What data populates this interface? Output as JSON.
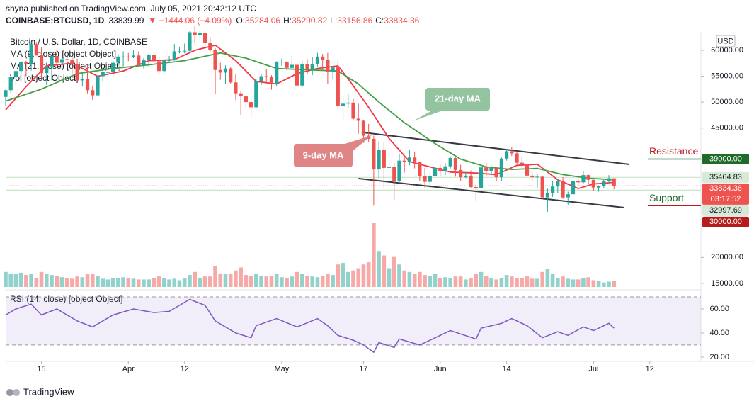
{
  "header": {
    "publisher": "shyna published on TradingView.com, July 05, 2021 20:42:12 UTC",
    "symbol": "COINBASE:BTCUSD, 1D",
    "last": "33839.99",
    "change": "▼ −1444.06 (−4.09%)",
    "ohlc": [
      {
        "key": "O:",
        "value": "35284.06"
      },
      {
        "key": "H:",
        "value": "35290.82"
      },
      {
        "key": "L:",
        "value": "33156.86"
      },
      {
        "key": "C:",
        "value": "33834.36"
      }
    ]
  },
  "footer": "TradingView",
  "chart_data": {
    "type": "candlestick",
    "legend": [
      "Bitcoin / U.S. Dollar, 1D, COINBASE",
      "MA (9, close) [object Object]",
      "MA (21, close) [object Object]",
      "Vol [object Object]"
    ],
    "currency": "USD",
    "x": [
      "03-08",
      "03-09",
      "03-10",
      "03-11",
      "03-12",
      "03-13",
      "03-14",
      "03-15",
      "03-16",
      "03-17",
      "03-18",
      "03-19",
      "03-20",
      "03-21",
      "03-22",
      "03-23",
      "03-24",
      "03-25",
      "03-26",
      "03-27",
      "03-28",
      "03-29",
      "03-30",
      "03-31",
      "04-01",
      "04-02",
      "04-03",
      "04-04",
      "04-05",
      "04-06",
      "04-07",
      "04-08",
      "04-09",
      "04-10",
      "04-11",
      "04-12",
      "04-13",
      "04-14",
      "04-15",
      "04-16",
      "04-17",
      "04-18",
      "04-19",
      "04-20",
      "04-21",
      "04-22",
      "04-23",
      "04-24",
      "04-25",
      "04-26",
      "04-27",
      "04-28",
      "04-29",
      "04-30",
      "05-01",
      "05-02",
      "05-03",
      "05-04",
      "05-05",
      "05-06",
      "05-07",
      "05-08",
      "05-09",
      "05-10",
      "05-11",
      "05-12",
      "05-13",
      "05-14",
      "05-15",
      "05-16",
      "05-17",
      "05-18",
      "05-19",
      "05-20",
      "05-21",
      "05-22",
      "05-23",
      "05-24",
      "05-25",
      "05-26",
      "05-27",
      "05-28",
      "05-29",
      "05-30",
      "05-31",
      "06-01",
      "06-02",
      "06-03",
      "06-04",
      "06-05",
      "06-06",
      "06-07",
      "06-08",
      "06-09",
      "06-10",
      "06-11",
      "06-12",
      "06-13",
      "06-14",
      "06-15",
      "06-16",
      "06-17",
      "06-18",
      "06-19",
      "06-20",
      "06-21",
      "06-22",
      "06-23",
      "06-24",
      "06-25",
      "06-26",
      "06-27",
      "06-28",
      "06-29",
      "06-30",
      "07-01",
      "07-02",
      "07-03",
      "07-04",
      "07-05"
    ],
    "open": [
      51000,
      52300,
      54800,
      56000,
      57800,
      57300,
      61200,
      59000,
      55600,
      56900,
      58900,
      57600,
      58300,
      58100,
      57400,
      54200,
      54400,
      52300,
      51300,
      55000,
      55800,
      55800,
      57600,
      58800,
      58800,
      58700,
      59000,
      57100,
      58200,
      59100,
      57900,
      56000,
      58000,
      58100,
      59800,
      59800,
      59900,
      63500,
      62900,
      63300,
      61500,
      60000,
      56200,
      55700,
      56500,
      53800,
      51700,
      51100,
      50000,
      49000,
      54000,
      55000,
      54900,
      53500,
      57700,
      57800,
      56600,
      57200,
      53200,
      57400,
      56400,
      57300,
      58800,
      58200,
      55800,
      56700,
      49200,
      49700,
      49900,
      46800,
      46400,
      43500,
      42900,
      37000,
      40800,
      37300,
      37500,
      34700,
      38700,
      38400,
      39300,
      38400,
      35700,
      34600,
      35700,
      37300,
      36700,
      37600,
      39200,
      36900,
      35500,
      35800,
      33600,
      33400,
      37400,
      36700,
      37300,
      35500,
      39100,
      40500,
      40100,
      38300,
      38100,
      35800,
      35500,
      35600,
      31600,
      32500,
      33700,
      34700,
      31600,
      32200,
      34700,
      34500,
      35900,
      35000,
      33500,
      33800,
      34700,
      35284.06
    ],
    "high": [
      52400,
      54900,
      57300,
      58100,
      58000,
      61700,
      61600,
      60600,
      56900,
      58900,
      60000,
      59400,
      59900,
      58600,
      58400,
      55800,
      57200,
      53200,
      55100,
      56600,
      56600,
      58400,
      59300,
      59800,
      59500,
      60000,
      59800,
      58500,
      59300,
      59500,
      58700,
      58200,
      58900,
      61200,
      60700,
      61300,
      63700,
      64800,
      63800,
      63500,
      62500,
      60400,
      57600,
      57100,
      56800,
      55500,
      52100,
      51100,
      50600,
      54400,
      55400,
      56400,
      55200,
      57900,
      58400,
      57900,
      58900,
      57200,
      57900,
      58300,
      58700,
      59500,
      59300,
      59500,
      56900,
      58000,
      51300,
      51500,
      50600,
      49700,
      46600,
      45800,
      43500,
      42400,
      42200,
      38800,
      38200,
      39900,
      39800,
      40800,
      40400,
      38500,
      37300,
      36400,
      37500,
      37900,
      38200,
      39500,
      39300,
      37900,
      36500,
      36800,
      34100,
      37500,
      38300,
      37700,
      37400,
      39300,
      41000,
      41300,
      40500,
      39500,
      38200,
      36400,
      36100,
      35700,
      33300,
      34800,
      35200,
      35500,
      32700,
      34700,
      35300,
      36600,
      36000,
      35000,
      33900,
      35000,
      35900,
      35290.82
    ],
    "low": [
      49300,
      51800,
      53000,
      54200,
      55000,
      56100,
      59000,
      54600,
      53300,
      54200,
      57000,
      56300,
      57800,
      55500,
      53700,
      53000,
      51700,
      50400,
      51300,
      53900,
      54700,
      54900,
      57000,
      56900,
      57900,
      58500,
      57000,
      56500,
      56800,
      57800,
      55500,
      55900,
      57700,
      58000,
      59400,
      59400,
      59800,
      61500,
      62100,
      60000,
      59700,
      51600,
      54300,
      53500,
      53600,
      50400,
      47500,
      48800,
      47000,
      48800,
      53300,
      53900,
      52400,
      53100,
      57000,
      56100,
      56500,
      53100,
      52900,
      55300,
      55200,
      56900,
      56200,
      53500,
      54400,
      48600,
      46200,
      48800,
      46600,
      43900,
      42100,
      42300,
      30000,
      35300,
      33500,
      35300,
      31100,
      34400,
      36400,
      37800,
      37200,
      34700,
      33500,
      33400,
      34200,
      35700,
      35900,
      37200,
      35600,
      34800,
      35300,
      33400,
      31000,
      32400,
      35800,
      35900,
      34700,
      34800,
      38700,
      39600,
      38100,
      37400,
      35100,
      34800,
      33400,
      31300,
      28800,
      31700,
      32400,
      31300,
      30200,
      32000,
      33900,
      34300,
      34100,
      32800,
      32700,
      33400,
      34400,
      33156.86
    ],
    "close": [
      52300,
      54800,
      56000,
      57800,
      57300,
      61200,
      59000,
      55600,
      56900,
      58900,
      57600,
      58300,
      58100,
      57400,
      54200,
      54400,
      52300,
      51300,
      55000,
      55800,
      55800,
      57600,
      58800,
      58800,
      58700,
      59000,
      57100,
      58200,
      59100,
      57900,
      56000,
      58000,
      58100,
      59800,
      59800,
      59900,
      63500,
      62900,
      63300,
      61500,
      60000,
      56200,
      55700,
      56500,
      53800,
      51700,
      51100,
      50000,
      49000,
      54000,
      55000,
      54900,
      53500,
      57700,
      57800,
      56600,
      57200,
      53200,
      57400,
      56400,
      57300,
      58800,
      58200,
      55800,
      56700,
      49200,
      49700,
      49900,
      46800,
      46400,
      43500,
      42900,
      37000,
      40800,
      37300,
      37500,
      34700,
      38700,
      38400,
      39300,
      38400,
      35700,
      34600,
      35700,
      37300,
      36700,
      37600,
      39200,
      36900,
      35500,
      35800,
      33600,
      33400,
      37400,
      36700,
      37300,
      35500,
      39100,
      40500,
      40100,
      38300,
      38100,
      35800,
      35500,
      35600,
      31600,
      32500,
      33700,
      34700,
      31600,
      32200,
      34700,
      34500,
      35900,
      35000,
      33500,
      33800,
      34700,
      35284.06,
      33834.36
    ],
    "volume": [
      20,
      18,
      17,
      19,
      16,
      18,
      12,
      20,
      17,
      16,
      15,
      13,
      12,
      11,
      14,
      13,
      18,
      17,
      15,
      11,
      10,
      12,
      12,
      13,
      12,
      11,
      10,
      10,
      10,
      12,
      14,
      12,
      10,
      11,
      9,
      12,
      16,
      20,
      12,
      14,
      14,
      28,
      18,
      17,
      17,
      22,
      26,
      16,
      15,
      18,
      15,
      14,
      15,
      17,
      13,
      12,
      14,
      20,
      17,
      15,
      14,
      13,
      15,
      18,
      16,
      30,
      32,
      20,
      22,
      25,
      30,
      33,
      85,
      48,
      42,
      25,
      40,
      30,
      22,
      20,
      18,
      20,
      16,
      15,
      17,
      12,
      13,
      12,
      14,
      14,
      10,
      12,
      17,
      20,
      15,
      12,
      10,
      12,
      16,
      14,
      12,
      12,
      14,
      11,
      11,
      20,
      24,
      17,
      12,
      14,
      11,
      10,
      10,
      12,
      13,
      9,
      8,
      6,
      7,
      8
    ],
    "up_color": "#26a69a",
    "down_color": "#ef5350",
    "ma_series": [
      {
        "color": "#f23645",
        "x": [
          "03-08",
          "03-12",
          "03-16",
          "03-21",
          "03-26",
          "03-31",
          "04-05",
          "04-10",
          "04-14",
          "04-18",
          "04-22",
          "04-26",
          "04-30",
          "05-04",
          "05-08",
          "05-12",
          "05-14",
          "05-18",
          "05-22",
          "05-26",
          "05-30",
          "06-03",
          "06-08",
          "06-12",
          "06-16",
          "06-20",
          "06-24",
          "06-28",
          "07-01",
          "07-05"
        ],
        "values": [
          48500,
          53000,
          57000,
          57500,
          55000,
          56000,
          58000,
          58200,
          60000,
          61000,
          58000,
          54000,
          53500,
          55500,
          56500,
          57000,
          54500,
          49000,
          43000,
          38500,
          37500,
          36500,
          36300,
          36000,
          37800,
          38000,
          35000,
          33300,
          34200,
          34500
        ]
      },
      {
        "color": "#43a047",
        "x": [
          "03-08",
          "03-15",
          "03-22",
          "03-29",
          "04-05",
          "04-12",
          "04-19",
          "04-24",
          "04-30",
          "05-07",
          "05-12",
          "05-16",
          "05-20",
          "05-25",
          "05-31",
          "06-05",
          "06-10",
          "06-15",
          "06-20",
          "06-25",
          "06-30",
          "07-05"
        ],
        "values": [
          50200,
          52500,
          55500,
          56500,
          57200,
          58000,
          59500,
          58500,
          56500,
          56200,
          56000,
          53500,
          50000,
          46000,
          42000,
          39000,
          37500,
          37000,
          37200,
          36000,
          35300,
          35000
        ]
      }
    ],
    "xlim": [
      "03-08",
      "07-22"
    ],
    "xticks": [
      {
        "value": "03-15",
        "label": "15"
      },
      {
        "value": "04-01",
        "label": "Apr"
      },
      {
        "value": "04-12",
        "label": "12"
      },
      {
        "value": "05-01",
        "label": "May"
      },
      {
        "value": "05-17",
        "label": "17"
      },
      {
        "value": "06-01",
        "label": "Jun"
      },
      {
        "value": "06-14",
        "label": "14"
      },
      {
        "value": "07-01",
        "label": "Jul"
      },
      {
        "value": "07-12",
        "label": "12"
      }
    ],
    "ylim": [
      14300,
      63560
    ],
    "yticks": [
      {
        "value": 60000,
        "label": "60000.00"
      },
      {
        "value": 55000,
        "label": "55000.00"
      },
      {
        "value": 50000,
        "label": "50000.00"
      },
      {
        "value": 45000,
        "label": "45000.00"
      },
      {
        "value": 20000,
        "label": "20000.00"
      },
      {
        "value": 15000,
        "label": "15000.00"
      }
    ],
    "price_labels": [
      {
        "value": 39000,
        "label": "39000.00",
        "color": "#1e6b2a",
        "text_color": "#ffffff",
        "line": "short"
      },
      {
        "value": 35464.83,
        "label": "35464.83",
        "color": "#d6ead7",
        "text_color": "#131722",
        "line": "full"
      },
      {
        "value": 33834.36,
        "label": "33834.36",
        "sub": "03:17:52",
        "color": "#ef5350",
        "text_color": "#ffffff",
        "line": "dotted"
      },
      {
        "value": 32997.69,
        "label": "32997.69",
        "color": "#d6ead7",
        "text_color": "#131722",
        "line": "full"
      },
      {
        "value": 30000,
        "label": "30000.00",
        "color": "#b71c1c",
        "text_color": "#ffffff",
        "line": "short"
      }
    ],
    "annotations": [
      {
        "text": "Resistance",
        "value": 39000,
        "color": "#b71c1c"
      },
      {
        "text": "Support",
        "value": 30000,
        "color": "#1e6b2a"
      }
    ],
    "trendlines": [
      {
        "x": [
          "05-17",
          "07-08"
        ],
        "values": [
          44130,
          37975
        ]
      },
      {
        "x": [
          "05-16",
          "07-07"
        ],
        "values": [
          35240,
          29630
        ]
      }
    ],
    "callouts": [
      "21-day MA",
      "9-day MA"
    ],
    "rsi": {
      "legend": "RSI (14, close) [object Object]",
      "color": "#7e57c2",
      "x": [
        "03-08",
        "03-10",
        "03-13",
        "03-15",
        "03-18",
        "03-22",
        "03-25",
        "03-29",
        "04-02",
        "04-06",
        "04-09",
        "04-13",
        "04-16",
        "04-18",
        "04-22",
        "04-25",
        "04-26",
        "04-30",
        "05-04",
        "05-08",
        "05-10",
        "05-12",
        "05-15",
        "05-17",
        "05-19",
        "05-20",
        "05-23",
        "05-24",
        "05-28",
        "06-01",
        "06-03",
        "06-08",
        "06-09",
        "06-13",
        "06-15",
        "06-18",
        "06-21",
        "06-24",
        "06-26",
        "06-29",
        "07-01",
        "07-04",
        "07-05"
      ],
      "values": [
        55,
        60,
        64,
        55,
        60,
        50,
        45,
        55,
        60,
        57,
        58,
        68,
        63,
        50,
        40,
        36,
        46,
        52,
        45,
        52,
        46,
        38,
        34,
        30,
        24,
        32,
        28,
        35,
        30,
        38,
        42,
        35,
        44,
        48,
        52,
        46,
        36,
        41,
        38,
        45,
        42,
        48,
        44
      ],
      "ylim": [
        17.6,
        74.1
      ],
      "yticks": [
        {
          "value": 60,
          "label": "60.00"
        },
        {
          "value": 40,
          "label": "40.00"
        },
        {
          "value": 20,
          "label": "20.00"
        }
      ],
      "band": [
        30,
        70
      ]
    }
  }
}
